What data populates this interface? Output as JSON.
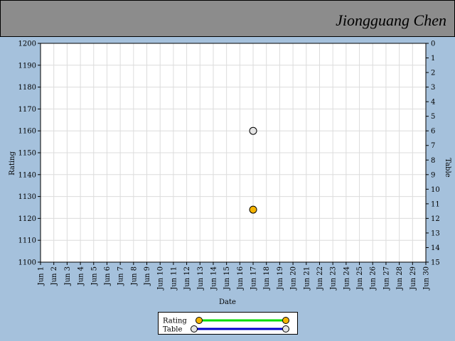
{
  "header": {
    "name": "Jiongguang Chen"
  },
  "chart_data": {
    "type": "line",
    "x_label": "Date",
    "y_label": "Rating",
    "y2_label": "Table",
    "categories": [
      "Jun 1",
      "Jun 2",
      "Jun 3",
      "Jun 4",
      "Jun 5",
      "Jun 6",
      "Jun 7",
      "Jun 8",
      "Jun 9",
      "Jun 10",
      "Jun 11",
      "Jun 12",
      "Jun 13",
      "Jun 14",
      "Jun 15",
      "Jun 16",
      "Jun 17",
      "Jun 18",
      "Jun 19",
      "Jun 20",
      "Jun 21",
      "Jun 22",
      "Jun 23",
      "Jun 24",
      "Jun 25",
      "Jun 26",
      "Jun 27",
      "Jun 28",
      "Jun 29",
      "Jun 30"
    ],
    "series": [
      {
        "name": "Rating",
        "color": "#00dd00",
        "marker_color": "#f5b400",
        "axis": "y",
        "values": [
          null,
          null,
          null,
          null,
          null,
          null,
          null,
          null,
          null,
          null,
          null,
          null,
          null,
          null,
          null,
          null,
          1124,
          null,
          null,
          null,
          null,
          null,
          null,
          null,
          null,
          null,
          null,
          null,
          null,
          null
        ]
      },
      {
        "name": "Table",
        "color": "#0000cc",
        "marker_color": "#e4e4e4",
        "axis": "y2",
        "values": [
          null,
          null,
          null,
          null,
          null,
          null,
          null,
          null,
          null,
          null,
          null,
          null,
          null,
          null,
          null,
          null,
          6,
          null,
          null,
          null,
          null,
          null,
          null,
          null,
          null,
          null,
          null,
          null,
          null,
          null
        ]
      }
    ],
    "ylim": [
      1100,
      1200
    ],
    "yticks": [
      1100,
      1110,
      1120,
      1130,
      1140,
      1150,
      1160,
      1170,
      1180,
      1190,
      1200
    ],
    "y2lim": [
      15,
      0
    ],
    "y2ticks": [
      0,
      1,
      2,
      3,
      4,
      5,
      6,
      7,
      8,
      9,
      10,
      11,
      12,
      13,
      14,
      15
    ],
    "grid": true
  }
}
